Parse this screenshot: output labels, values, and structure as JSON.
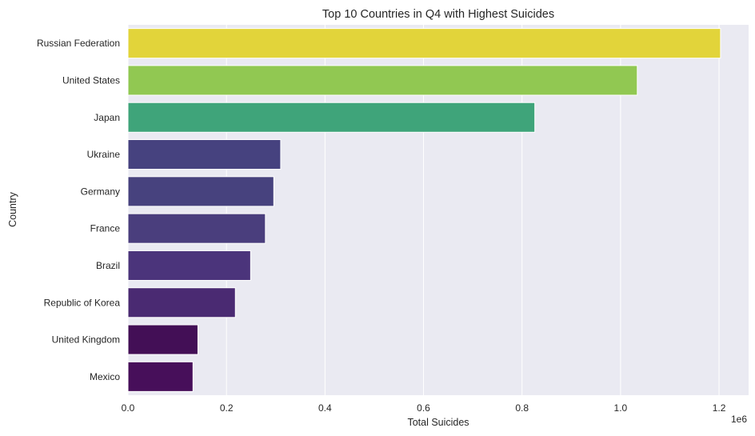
{
  "chart_data": {
    "type": "bar",
    "orientation": "horizontal",
    "title": "Top 10 Countries in Q4 with Highest Suicides",
    "xlabel": "Total Suicides",
    "ylabel": "Country",
    "x_offset_label": "1e6",
    "x_ticks": [
      "0.0",
      "0.2",
      "0.4",
      "0.6",
      "0.8",
      "1.0",
      "1.2"
    ],
    "xlim": [
      0,
      1.26
    ],
    "x_unit_scale": 1000000,
    "grid": true,
    "categories": [
      "Russian Federation",
      "United States",
      "Japan",
      "Ukraine",
      "Germany",
      "France",
      "Brazil",
      "Republic of Korea",
      "United Kingdom",
      "Mexico"
    ],
    "values": [
      1203000,
      1034000,
      826000,
      310000,
      296000,
      279000,
      249000,
      218000,
      142000,
      132000
    ],
    "colors": [
      "#e2d43a",
      "#91c852",
      "#3fa47a",
      "#46427f",
      "#47427e",
      "#4a3e7d",
      "#4b347b",
      "#4a2a72",
      "#430f56",
      "#470f5a"
    ],
    "background_color": "#eaeaf2",
    "grid_color": "#ffffff"
  }
}
